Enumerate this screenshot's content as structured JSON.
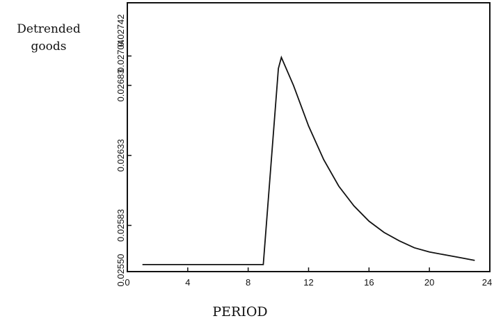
{
  "chart_data": {
    "type": "line",
    "title": "",
    "ylabel": "Detrended goods",
    "xlabel": "PERIOD",
    "xlim": [
      0,
      24
    ],
    "ylim": [
      0.0255,
      0.02742
    ],
    "x_ticks": [
      0,
      4,
      8,
      12,
      16,
      20,
      24
    ],
    "x_tick_labels": [
      "0",
      "4",
      "8",
      "12",
      "16",
      "20",
      "24"
    ],
    "y_ticks": [
      0.0255,
      0.02583,
      0.02633,
      0.02683,
      0.02704,
      0.02742
    ],
    "y_tick_labels": [
      "0.02550",
      "0.02583",
      "0.02633",
      "0.02683",
      "0.02704",
      "0.02742"
    ],
    "grid": false,
    "series": [
      {
        "x": [
          1,
          2,
          3,
          4,
          5,
          6,
          7,
          8,
          9,
          10,
          10.2,
          11,
          12,
          13,
          14,
          15,
          16,
          17,
          18,
          19,
          20,
          21,
          22,
          23
        ],
        "y": [
          0.02555,
          0.02555,
          0.02555,
          0.02555,
          0.02555,
          0.02555,
          0.02555,
          0.02555,
          0.02555,
          0.02695,
          0.02703,
          0.02683,
          0.02654,
          0.0263,
          0.02611,
          0.02597,
          0.02586,
          0.02578,
          0.02572,
          0.02567,
          0.02564,
          0.02562,
          0.0256,
          0.02558
        ]
      }
    ]
  }
}
